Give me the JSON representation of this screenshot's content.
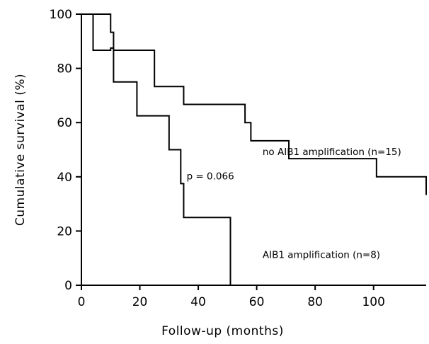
{
  "chart_data": {
    "type": "line",
    "step": true,
    "title": "",
    "xlabel": "Follow-up (months)",
    "ylabel": "Cumulative survival (%)",
    "xlim": [
      0,
      118
    ],
    "ylim": [
      0,
      100
    ],
    "xticks": [
      0,
      20,
      40,
      60,
      80,
      100
    ],
    "yticks": [
      0,
      20,
      40,
      60,
      80,
      100
    ],
    "grid": false,
    "line_color": "#000000",
    "series": [
      {
        "name": "no AIB1 amplification (n=15)",
        "x": [
          2,
          10,
          11,
          25,
          35,
          56,
          58,
          71,
          101,
          118
        ],
        "y": [
          100,
          93.3,
          86.7,
          73.3,
          66.7,
          60,
          53.3,
          46.7,
          40,
          33.3
        ]
      },
      {
        "name": "AIB1 amplification (n=8)",
        "x": [
          2,
          4,
          6,
          10,
          11,
          19,
          30,
          34,
          35,
          51
        ],
        "y": [
          100,
          86.7,
          86.7,
          87.5,
          75,
          62.5,
          50,
          37.5,
          25,
          0
        ]
      }
    ],
    "annotations": [
      {
        "text": "no AIB1 amplification (n=15)",
        "x": 62,
        "y": 48
      },
      {
        "text": "p = 0.066",
        "x": 36,
        "y": 39
      },
      {
        "text": "AIB1 amplification (n=8)",
        "x": 62,
        "y": 10
      }
    ]
  }
}
